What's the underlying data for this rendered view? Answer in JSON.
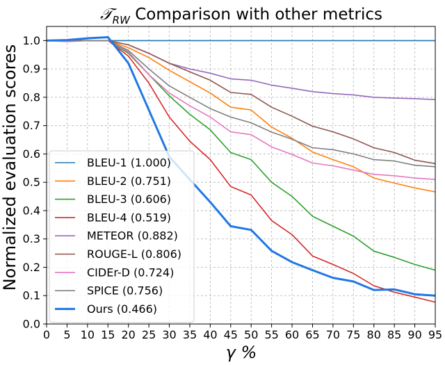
{
  "chart_data": {
    "type": "line",
    "title_main": "𝒯",
    "title_sub": "RW",
    "title_rest": " Comparison with other metrics",
    "xlabel": "γ %",
    "ylabel": "Normalized evaluation scores",
    "xlim": [
      0,
      95
    ],
    "ylim": [
      0.0,
      1.05
    ],
    "x_ticks": [
      0,
      5,
      10,
      15,
      20,
      25,
      30,
      35,
      40,
      45,
      50,
      55,
      60,
      65,
      70,
      75,
      80,
      85,
      90,
      95
    ],
    "y_ticks": [
      0.0,
      0.1,
      0.2,
      0.3,
      0.4,
      0.5,
      0.6,
      0.7,
      0.8,
      0.9,
      1.0
    ],
    "y_tick_labels": [
      "0.0",
      "0.1",
      "0.2",
      "0.3",
      "0.4",
      "0.5",
      "0.6",
      "0.7",
      "0.8",
      "0.9",
      "1.0"
    ],
    "grid": true,
    "legend_position": "lower-left",
    "x": [
      0,
      5,
      10,
      15,
      20,
      25,
      30,
      35,
      40,
      45,
      50,
      55,
      60,
      65,
      70,
      75,
      80,
      85,
      90,
      95
    ],
    "series": [
      {
        "name": "BLEU-1 (1.000)",
        "color": "#1f77b4",
        "width": 1.6,
        "values": [
          1.0,
          1.0,
          1.0,
          1.0,
          1.0,
          1.0,
          1.0,
          1.0,
          1.0,
          1.0,
          1.0,
          1.0,
          1.0,
          1.0,
          1.0,
          1.0,
          1.0,
          1.0,
          1.0,
          1.0
        ]
      },
      {
        "name": "BLEU-2 (0.751)",
        "color": "#ff7f0e",
        "width": 1.6,
        "values": [
          1.0,
          1.0,
          1.0,
          1.0,
          0.975,
          0.94,
          0.895,
          0.855,
          0.815,
          0.765,
          0.755,
          0.695,
          0.655,
          0.607,
          0.58,
          0.555,
          0.515,
          0.497,
          0.48,
          0.466
        ]
      },
      {
        "name": "BLEU-3 (0.606)",
        "color": "#2ca02c",
        "width": 1.6,
        "values": [
          1.0,
          1.0,
          1.0,
          1.0,
          0.955,
          0.88,
          0.805,
          0.74,
          0.685,
          0.605,
          0.58,
          0.5,
          0.45,
          0.38,
          0.345,
          0.31,
          0.257,
          0.235,
          0.21,
          0.19
        ]
      },
      {
        "name": "BLEU-4 (0.519)",
        "color": "#d62728",
        "width": 1.6,
        "values": [
          1.0,
          1.0,
          1.0,
          1.0,
          0.945,
          0.85,
          0.73,
          0.645,
          0.58,
          0.485,
          0.455,
          0.365,
          0.315,
          0.24,
          0.21,
          0.178,
          0.135,
          0.112,
          0.095,
          0.077
        ]
      },
      {
        "name": "METEOR (0.882)",
        "color": "#9467bd",
        "width": 1.6,
        "values": [
          1.0,
          1.0,
          1.0,
          1.0,
          0.985,
          0.955,
          0.92,
          0.9,
          0.885,
          0.865,
          0.86,
          0.843,
          0.832,
          0.82,
          0.813,
          0.808,
          0.8,
          0.797,
          0.795,
          0.792
        ]
      },
      {
        "name": "ROUGE-L (0.806)",
        "color": "#8c564b",
        "width": 1.6,
        "values": [
          1.0,
          1.0,
          1.0,
          1.0,
          0.985,
          0.955,
          0.92,
          0.89,
          0.86,
          0.817,
          0.81,
          0.765,
          0.733,
          0.698,
          0.678,
          0.653,
          0.622,
          0.605,
          0.578,
          0.566
        ]
      },
      {
        "name": "CIDEr-D (0.724)",
        "color": "#e377c2",
        "width": 1.6,
        "values": [
          1.0,
          0.996,
          1.0,
          1.0,
          0.96,
          0.88,
          0.815,
          0.77,
          0.73,
          0.678,
          0.668,
          0.625,
          0.598,
          0.568,
          0.558,
          0.543,
          0.528,
          0.523,
          0.515,
          0.51
        ]
      },
      {
        "name": "SPICE (0.756)",
        "color": "#7f7f7f",
        "width": 1.6,
        "values": [
          1.0,
          1.0,
          1.0,
          1.0,
          0.965,
          0.9,
          0.84,
          0.8,
          0.76,
          0.73,
          0.71,
          0.677,
          0.652,
          0.622,
          0.615,
          0.6,
          0.58,
          0.575,
          0.56,
          0.555
        ]
      },
      {
        "name": "Ours (0.466)",
        "color": "#1f77e4",
        "width": 3,
        "values": [
          1.0,
          1.002,
          1.008,
          1.012,
          0.92,
          0.755,
          0.59,
          0.51,
          0.43,
          0.345,
          0.332,
          0.258,
          0.218,
          0.19,
          0.163,
          0.15,
          0.12,
          0.122,
          0.105,
          0.1
        ]
      }
    ]
  }
}
